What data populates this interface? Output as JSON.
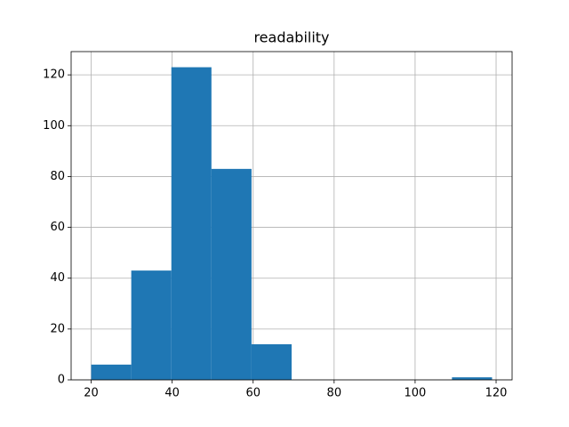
{
  "chart_data": {
    "type": "histogram",
    "title": "readability",
    "bins": [
      20,
      29.9,
      39.8,
      49.7,
      59.6,
      69.5,
      79.4,
      89.3,
      99.2,
      109.1,
      119
    ],
    "values": [
      6,
      43,
      123,
      83,
      14,
      0,
      0,
      0,
      0,
      1
    ],
    "color": "#1f77b4",
    "xlim": [
      15.05,
      123.95
    ],
    "xticks": [
      20,
      40,
      60,
      80,
      100,
      120
    ],
    "ylim": [
      0,
      129.15
    ],
    "yticks": [
      0,
      20,
      40,
      60,
      80,
      100,
      120
    ],
    "grid": true
  }
}
